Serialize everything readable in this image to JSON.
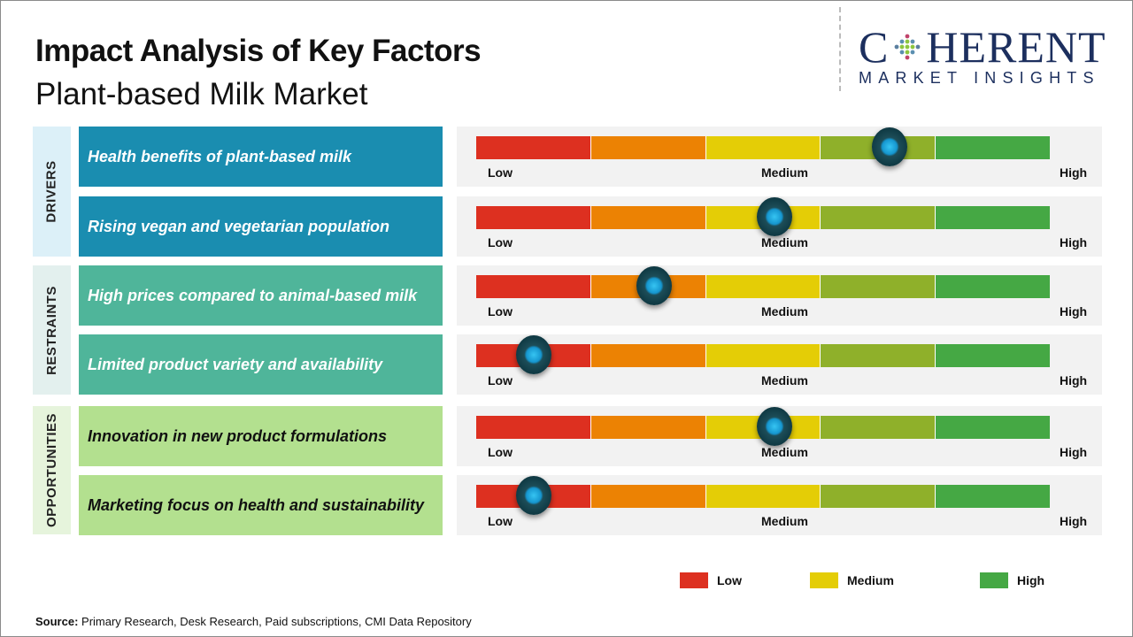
{
  "header": {
    "title": "Impact Analysis of Key Factors",
    "subtitle": "Plant-based Milk Market"
  },
  "logo": {
    "main_left": "C",
    "main_right": "HERENT",
    "sub": "MARKET INSIGHTS"
  },
  "colors": {
    "scale": [
      "#dd3020",
      "#ec8203",
      "#e4cd06",
      "#8fb02a",
      "#45a844"
    ],
    "knob": "#1596cf"
  },
  "chart_data": {
    "type": "gauge",
    "scale_labels": [
      "Low",
      "Medium",
      "High"
    ],
    "categories": [
      {
        "name": "DRIVERS",
        "bg": "#dcf0f8",
        "box": "#1a8db0",
        "text": "#ffffff"
      },
      {
        "name": "RESTRAINTS",
        "bg": "#e3f0ee",
        "box": "#4fb59a",
        "text": "#ffffff"
      },
      {
        "name": "OPPORTUNITIES",
        "bg": "#e6f4dc",
        "box": "#b3e08f",
        "text": "#111111"
      }
    ],
    "factors": [
      {
        "category": 0,
        "label": "Health benefits of plant-based milk",
        "impact": 0.72
      },
      {
        "category": 0,
        "label": "Rising vegan and vegetarian population",
        "impact": 0.52
      },
      {
        "category": 1,
        "label": "High prices compared to animal-based milk",
        "impact": 0.31
      },
      {
        "category": 1,
        "label": "Limited product variety and availability",
        "impact": 0.1
      },
      {
        "category": 2,
        "label": "Innovation in new product formulations",
        "impact": 0.52
      },
      {
        "category": 2,
        "label": "Marketing focus on health and sustainability",
        "impact": 0.1
      }
    ]
  },
  "legend": [
    {
      "label": "Low",
      "color": "#dd3020"
    },
    {
      "label": "Medium",
      "color": "#e4cd06"
    },
    {
      "label": "High",
      "color": "#45a844"
    }
  ],
  "source": {
    "label": "Source:",
    "text": " Primary Research, Desk Research, Paid subscriptions, CMI Data Repository"
  }
}
